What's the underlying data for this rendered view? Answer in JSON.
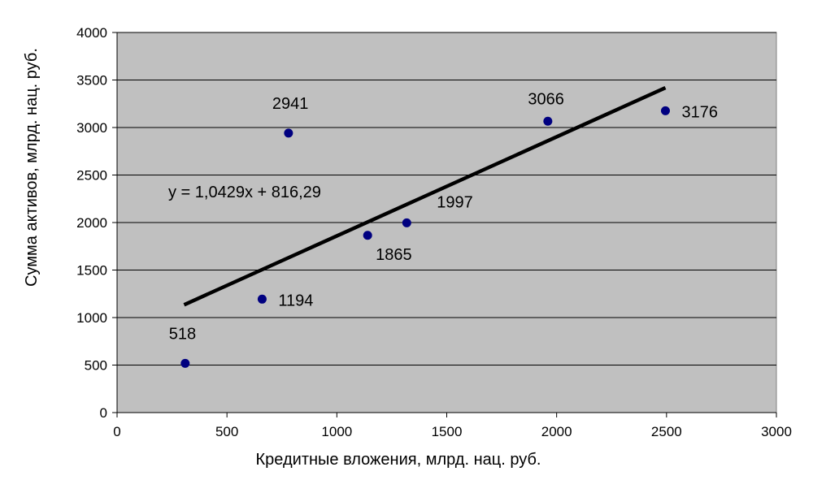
{
  "chart_data": {
    "type": "scatter",
    "xlabel": "Кредитные вложения, млрд. нац. руб.",
    "ylabel": "Сумма активов, млрд. нац. руб.",
    "xlim": [
      0,
      3000
    ],
    "ylim": [
      0,
      4000
    ],
    "x_ticks": [
      0,
      500,
      1000,
      1500,
      2000,
      2500,
      3000
    ],
    "y_ticks": [
      0,
      500,
      1000,
      1500,
      2000,
      2500,
      3000,
      3500,
      4000
    ],
    "grid": "horizontal",
    "plot_background": "#c0c0c0",
    "marker_color": "#000080",
    "trendline_color": "#000000",
    "points": [
      {
        "x": 310,
        "y": 518,
        "label": "518",
        "label_pos": "above"
      },
      {
        "x": 660,
        "y": 1194,
        "label": "1194",
        "label_pos": "right"
      },
      {
        "x": 780,
        "y": 2941,
        "label": "2941",
        "label_pos": "above"
      },
      {
        "x": 1140,
        "y": 1865,
        "label": "1865",
        "label_pos": "below-right"
      },
      {
        "x": 1318,
        "y": 1997,
        "label": "1997",
        "label_pos": "above-right"
      },
      {
        "x": 1960,
        "y": 3066,
        "label": "3066",
        "label_pos": "above-left"
      },
      {
        "x": 2495,
        "y": 3176,
        "label": "3176",
        "label_pos": "right"
      }
    ],
    "trendline": {
      "type": "linear",
      "slope": 1.0429,
      "intercept": 816.29,
      "x_range": [
        305,
        2495
      ],
      "equation": "y = 1,0429x + 816,29"
    }
  }
}
